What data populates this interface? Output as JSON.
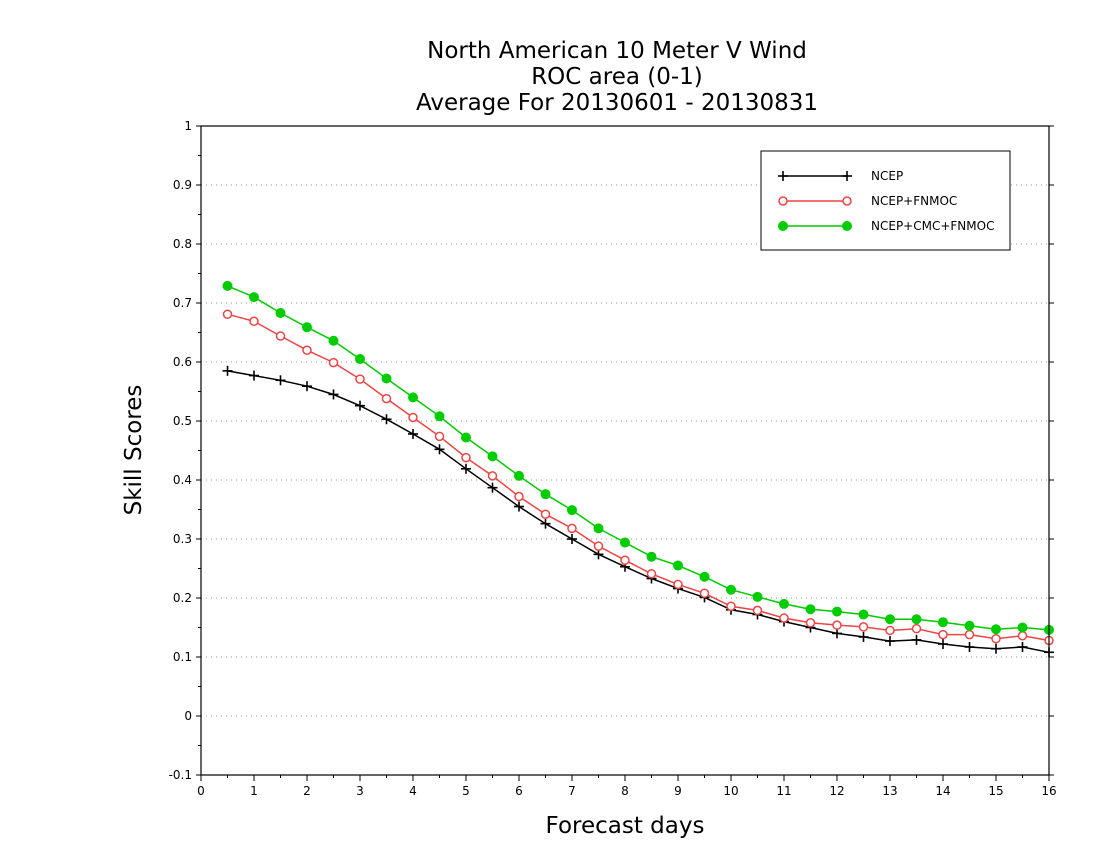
{
  "chart_data": {
    "type": "line",
    "title_lines": [
      "North American 10 Meter V Wind",
      "ROC area (0-1)",
      "Average For 20130601 - 20130831"
    ],
    "xlabel": "Forecast days",
    "ylabel": "Skill Scores",
    "xlim": [
      0,
      16
    ],
    "ylim": [
      -0.1,
      1
    ],
    "xticks": [
      "0",
      "1",
      "2",
      "3",
      "4",
      "5",
      "6",
      "7",
      "8",
      "9",
      "10",
      "11",
      "12",
      "13",
      "14",
      "15",
      "16"
    ],
    "yticks": [
      "-0.1",
      "0",
      "0.1",
      "0.2",
      "0.3",
      "0.4",
      "0.5",
      "0.6",
      "0.7",
      "0.8",
      "0.9",
      "1"
    ],
    "grid": "horizontal dotted",
    "legend_position": "top-right",
    "x": [
      0.5,
      1,
      1.5,
      2,
      2.5,
      3,
      3.5,
      4,
      4.5,
      5,
      5.5,
      6,
      6.5,
      7,
      7.5,
      8,
      8.5,
      9,
      9.5,
      10,
      10.5,
      11,
      11.5,
      12,
      12.5,
      13,
      13.5,
      14,
      14.5,
      15,
      15.5,
      16
    ],
    "series": [
      {
        "name": "NCEP",
        "color": "#000000",
        "marker": "plus",
        "values": [
          0.585,
          0.577,
          0.569,
          0.559,
          0.545,
          0.526,
          0.503,
          0.478,
          0.452,
          0.419,
          0.387,
          0.355,
          0.326,
          0.3,
          0.274,
          0.253,
          0.233,
          0.216,
          0.201,
          0.18,
          0.172,
          0.16,
          0.15,
          0.14,
          0.134,
          0.127,
          0.129,
          0.122,
          0.117,
          0.114,
          0.117,
          0.108
        ]
      },
      {
        "name": "NCEP+FNMOC",
        "color": "#ee4444",
        "marker": "open-circle",
        "values": [
          0.681,
          0.669,
          0.644,
          0.62,
          0.599,
          0.571,
          0.538,
          0.506,
          0.474,
          0.438,
          0.407,
          0.372,
          0.342,
          0.318,
          0.288,
          0.264,
          0.241,
          0.223,
          0.208,
          0.186,
          0.179,
          0.166,
          0.158,
          0.154,
          0.151,
          0.145,
          0.148,
          0.138,
          0.138,
          0.131,
          0.136,
          0.128
        ]
      },
      {
        "name": "NCEP+CMC+FNMOC",
        "color": "#00cc00",
        "marker": "filled-circle",
        "values": [
          0.729,
          0.71,
          0.683,
          0.659,
          0.636,
          0.605,
          0.572,
          0.54,
          0.508,
          0.472,
          0.44,
          0.407,
          0.376,
          0.349,
          0.318,
          0.294,
          0.27,
          0.255,
          0.236,
          0.214,
          0.202,
          0.19,
          0.181,
          0.177,
          0.172,
          0.164,
          0.164,
          0.159,
          0.153,
          0.147,
          0.15,
          0.146
        ]
      }
    ]
  }
}
